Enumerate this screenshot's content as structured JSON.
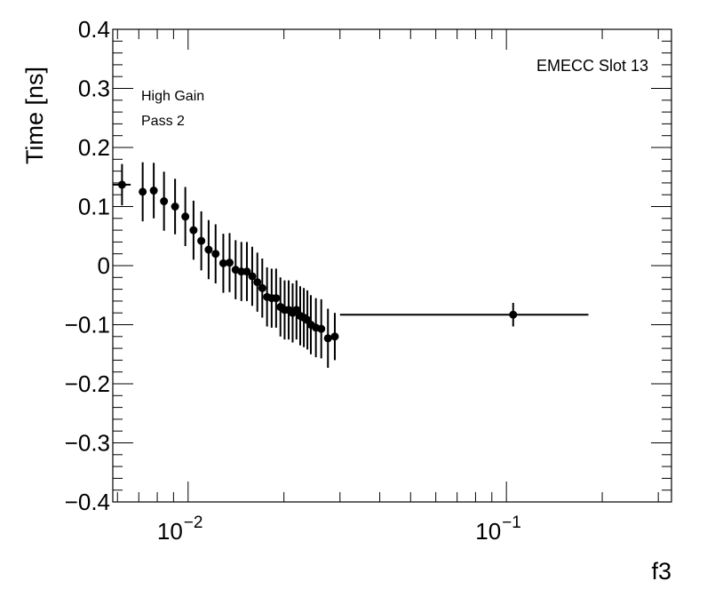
{
  "chart_data": {
    "type": "scatter",
    "title": "",
    "xlabel": "f3",
    "ylabel": "Time [ns]",
    "x_scale": "log",
    "xlim": [
      0.0058,
      0.33
    ],
    "ylim": [
      -0.4,
      0.4
    ],
    "y_ticks": [
      {
        "value": 0.4,
        "label": "0.4"
      },
      {
        "value": 0.3,
        "label": "0.3"
      },
      {
        "value": 0.2,
        "label": "0.2"
      },
      {
        "value": 0.1,
        "label": "0.1"
      },
      {
        "value": 0.0,
        "label": "0"
      },
      {
        "value": -0.1,
        "label": "−0.1"
      },
      {
        "value": -0.2,
        "label": "−0.2"
      },
      {
        "value": -0.3,
        "label": "−0.3"
      },
      {
        "value": -0.4,
        "label": "−0.4"
      }
    ],
    "x_ticks": [
      {
        "value": 0.01,
        "base": "10",
        "exp": "−2"
      },
      {
        "value": 0.1,
        "base": "10",
        "exp": "−1"
      }
    ],
    "annotations": [
      "EMECC Slot 13",
      "High Gain",
      "Pass 2"
    ],
    "grid": false,
    "marker_color": "#000000",
    "series": [
      {
        "points": [
          {
            "x": 0.0062,
            "y": 0.137,
            "xerr_lo": 0.0004,
            "xerr_hi": 0.0004,
            "yerr": 0.035
          },
          {
            "x": 0.0072,
            "y": 0.125,
            "xerr_lo": 0,
            "xerr_hi": 0,
            "yerr": 0.05
          },
          {
            "x": 0.0078,
            "y": 0.127,
            "xerr_lo": 0,
            "xerr_hi": 0,
            "yerr": 0.047
          },
          {
            "x": 0.0084,
            "y": 0.109,
            "xerr_lo": 0,
            "xerr_hi": 0,
            "yerr": 0.05
          },
          {
            "x": 0.0091,
            "y": 0.1,
            "xerr_lo": 0,
            "xerr_hi": 0,
            "yerr": 0.047
          },
          {
            "x": 0.0098,
            "y": 0.083,
            "xerr_lo": 0,
            "xerr_hi": 0,
            "yerr": 0.05
          },
          {
            "x": 0.0104,
            "y": 0.06,
            "xerr_lo": 0,
            "xerr_hi": 0,
            "yerr": 0.05
          },
          {
            "x": 0.011,
            "y": 0.042,
            "xerr_lo": 0,
            "xerr_hi": 0,
            "yerr": 0.05
          },
          {
            "x": 0.0116,
            "y": 0.027,
            "xerr_lo": 0,
            "xerr_hi": 0,
            "yerr": 0.05
          },
          {
            "x": 0.0122,
            "y": 0.02,
            "xerr_lo": 0,
            "xerr_hi": 0,
            "yerr": 0.05
          },
          {
            "x": 0.0129,
            "y": 0.004,
            "xerr_lo": 0,
            "xerr_hi": 0,
            "yerr": 0.05
          },
          {
            "x": 0.0135,
            "y": 0.005,
            "xerr_lo": 0,
            "xerr_hi": 0,
            "yerr": 0.05
          },
          {
            "x": 0.0141,
            "y": -0.007,
            "xerr_lo": 0,
            "xerr_hi": 0,
            "yerr": 0.05
          },
          {
            "x": 0.0147,
            "y": -0.01,
            "xerr_lo": 0,
            "xerr_hi": 0,
            "yerr": 0.05
          },
          {
            "x": 0.0153,
            "y": -0.01,
            "xerr_lo": 0,
            "xerr_hi": 0,
            "yerr": 0.05
          },
          {
            "x": 0.0159,
            "y": -0.018,
            "xerr_lo": 0,
            "xerr_hi": 0,
            "yerr": 0.05
          },
          {
            "x": 0.0165,
            "y": -0.028,
            "xerr_lo": 0,
            "xerr_hi": 0,
            "yerr": 0.05
          },
          {
            "x": 0.0171,
            "y": -0.038,
            "xerr_lo": 0,
            "xerr_hi": 0,
            "yerr": 0.05
          },
          {
            "x": 0.0177,
            "y": -0.053,
            "xerr_lo": 0,
            "xerr_hi": 0,
            "yerr": 0.05
          },
          {
            "x": 0.0183,
            "y": -0.055,
            "xerr_lo": 0,
            "xerr_hi": 0,
            "yerr": 0.05
          },
          {
            "x": 0.0189,
            "y": -0.055,
            "xerr_lo": 0,
            "xerr_hi": 0,
            "yerr": 0.05
          },
          {
            "x": 0.0195,
            "y": -0.07,
            "xerr_lo": 0,
            "xerr_hi": 0,
            "yerr": 0.05
          },
          {
            "x": 0.0201,
            "y": -0.075,
            "xerr_lo": 0,
            "xerr_hi": 0,
            "yerr": 0.05
          },
          {
            "x": 0.0207,
            "y": -0.075,
            "xerr_lo": 0,
            "xerr_hi": 0,
            "yerr": 0.05
          },
          {
            "x": 0.0213,
            "y": -0.08,
            "xerr_lo": 0,
            "xerr_hi": 0,
            "yerr": 0.05
          },
          {
            "x": 0.0219,
            "y": -0.075,
            "xerr_lo": 0,
            "xerr_hi": 0,
            "yerr": 0.05
          },
          {
            "x": 0.0225,
            "y": -0.085,
            "xerr_lo": 0,
            "xerr_hi": 0,
            "yerr": 0.05
          },
          {
            "x": 0.0231,
            "y": -0.088,
            "xerr_lo": 0,
            "xerr_hi": 0,
            "yerr": 0.05
          },
          {
            "x": 0.0237,
            "y": -0.092,
            "xerr_lo": 0,
            "xerr_hi": 0,
            "yerr": 0.05
          },
          {
            "x": 0.0243,
            "y": -0.1,
            "xerr_lo": 0,
            "xerr_hi": 0,
            "yerr": 0.05
          },
          {
            "x": 0.0252,
            "y": -0.105,
            "xerr_lo": 0,
            "xerr_hi": 0,
            "yerr": 0.05
          },
          {
            "x": 0.0262,
            "y": -0.107,
            "xerr_lo": 0,
            "xerr_hi": 0,
            "yerr": 0.05
          },
          {
            "x": 0.0275,
            "y": -0.123,
            "xerr_lo": 0,
            "xerr_hi": 0,
            "yerr": 0.05
          },
          {
            "x": 0.0289,
            "y": -0.12,
            "xerr_lo": 0,
            "xerr_hi": 0,
            "yerr": 0.04
          },
          {
            "x": 0.105,
            "y": -0.083,
            "xerr_lo": 0.075,
            "xerr_hi": 0.076,
            "yerr": 0.02
          }
        ]
      }
    ]
  }
}
